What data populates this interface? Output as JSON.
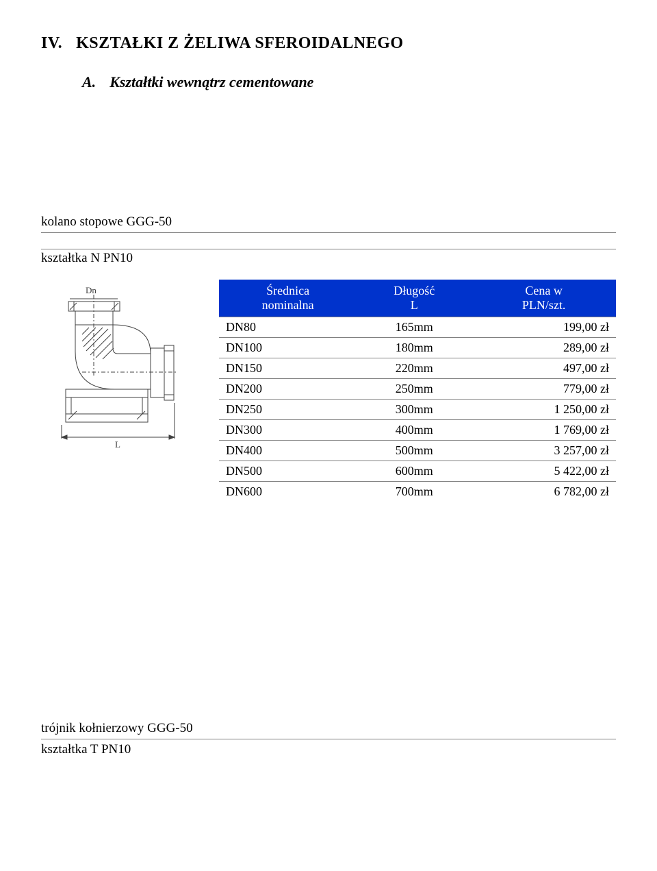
{
  "section": {
    "number": "IV.",
    "title": "KSZTAŁKI Z ŻELIWA SFEROIDALNEGO"
  },
  "subsection": {
    "letter": "A.",
    "title": "Kształtki wewnątrz cementowane"
  },
  "item1": {
    "title": "kolano stopowe GGG-50",
    "subtitle": "kształtka N PN10"
  },
  "item2": {
    "title": "trójnik kołnierzowy GGG-50",
    "subtitle": "kształtka T PN10"
  },
  "table": {
    "header_bg": "#0033cc",
    "header_fg": "#ffffff",
    "columns": [
      "Średnica nominalna",
      "Długość L",
      "Cena w PLN/szt."
    ],
    "col0_line1": "Średnica",
    "col0_line2": "nominalna",
    "col1_line1": "Długość",
    "col1_line2": "L",
    "col2_line1": "Cena w",
    "col2_line2": "PLN/szt.",
    "rows": [
      {
        "name": "DN80",
        "len": "165mm",
        "price": "199,00 zł"
      },
      {
        "name": "DN100",
        "len": "180mm",
        "price": "289,00 zł"
      },
      {
        "name": "DN150",
        "len": "220mm",
        "price": "497,00 zł"
      },
      {
        "name": "DN200",
        "len": "250mm",
        "price": "779,00 zł"
      },
      {
        "name": "DN250",
        "len": "300mm",
        "price": "1 250,00 zł"
      },
      {
        "name": "DN300",
        "len": "400mm",
        "price": "1 769,00 zł"
      },
      {
        "name": "DN400",
        "len": "500mm",
        "price": "3 257,00 zł"
      },
      {
        "name": "DN500",
        "len": "600mm",
        "price": "5 422,00 zł"
      },
      {
        "name": "DN600",
        "len": "700mm",
        "price": "6 782,00 zł"
      }
    ]
  },
  "diagram": {
    "stroke": "#404040",
    "label_dn": "Dn",
    "label_l": "L"
  }
}
